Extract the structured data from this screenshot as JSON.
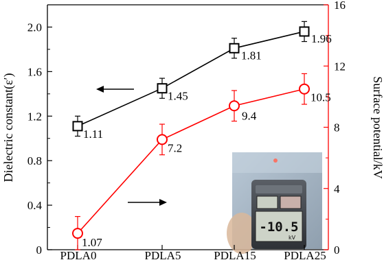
{
  "chart_data": {
    "type": "line",
    "categories": [
      "PDLA0",
      "PDLA5",
      "PDLA15",
      "PDLA25"
    ],
    "y_left": {
      "label": "Dielectric constant(ε′)",
      "lim": [
        0,
        2.2
      ],
      "ticks": [
        "0",
        "0.4",
        "0.8",
        "1.2",
        "1.6",
        "2.0"
      ],
      "tick_values": [
        0,
        0.4,
        0.8,
        1.2,
        1.6,
        2.0
      ],
      "color": "#000000"
    },
    "y_right": {
      "label": "Surface potential/kV",
      "lim": [
        0,
        16
      ],
      "ticks": [
        "0",
        "4",
        "8",
        "12",
        "16"
      ],
      "tick_values": [
        0,
        4,
        8,
        12,
        16
      ],
      "color": "#ff0000"
    },
    "series": [
      {
        "axis": "left",
        "color": "#000000",
        "marker": "square",
        "values": [
          1.11,
          1.45,
          1.81,
          1.96
        ],
        "errors": [
          0.09,
          0.09,
          0.09,
          0.09
        ],
        "labels": [
          "1.11",
          "1.45",
          "1.81",
          "1.96"
        ]
      },
      {
        "axis": "right",
        "color": "#ff0000",
        "marker": "circle",
        "values": [
          1.07,
          7.2,
          9.4,
          10.5
        ],
        "errors": [
          1.1,
          1.0,
          1.0,
          1.0
        ],
        "labels": [
          "1.07",
          "7.2",
          "9.4",
          "10.5"
        ]
      }
    ],
    "inset_photo": {
      "meter_reading": "-10.5",
      "meter_unit": "kV"
    }
  }
}
